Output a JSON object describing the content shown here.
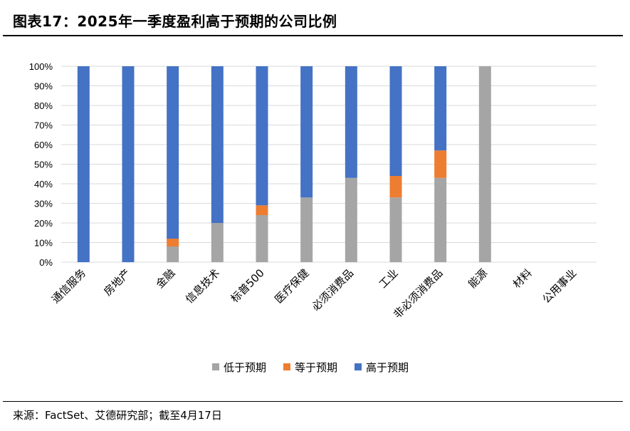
{
  "figure": {
    "title": "图表17：2025年一季度盈利高于预期的公司比例",
    "source": "来源：FactSet、艾德研究部；截至4月17日"
  },
  "chart_data": {
    "type": "bar",
    "stacked": true,
    "title": "",
    "xlabel": "",
    "ylabel": "",
    "ylim": [
      0,
      100
    ],
    "yticks": [
      "0%",
      "10%",
      "20%",
      "30%",
      "40%",
      "50%",
      "60%",
      "70%",
      "80%",
      "90%",
      "100%"
    ],
    "grid": true,
    "legend_position": "bottom",
    "categories": [
      "通信服务",
      "房地产",
      "金融",
      "信息技术",
      "标普500",
      "医疗保健",
      "必须消费品",
      "工业",
      "非必须消费品",
      "能源",
      "材料",
      "公用事业"
    ],
    "series": [
      {
        "name": "低于预期",
        "color": "#A5A5A5",
        "values": [
          0,
          0,
          8,
          20,
          24,
          33,
          43,
          33,
          43,
          100,
          0,
          0
        ]
      },
      {
        "name": "等于预期",
        "color": "#ED7D31",
        "values": [
          0,
          0,
          4,
          0,
          5,
          0,
          0,
          11,
          14,
          0,
          0,
          0
        ]
      },
      {
        "name": "高于预期",
        "color": "#4472C4",
        "values": [
          100,
          100,
          88,
          80,
          71,
          67,
          57,
          56,
          43,
          0,
          0,
          0
        ]
      }
    ]
  }
}
